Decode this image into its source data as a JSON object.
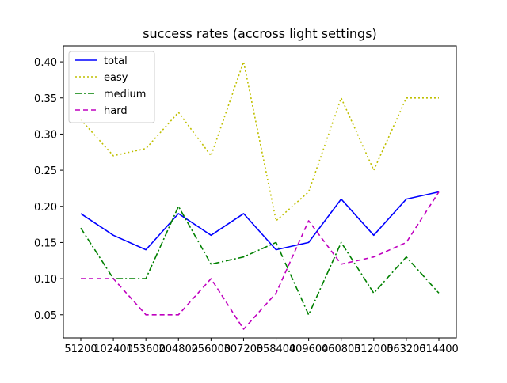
{
  "chart_data": {
    "type": "line",
    "title": "success rates (accross light settings)",
    "xlabel": "",
    "ylabel": "",
    "categories": [
      "51200",
      "102400",
      "153600",
      "204800",
      "256000",
      "307200",
      "358400",
      "409600",
      "460800",
      "512000",
      "563200",
      "614400"
    ],
    "yticks": [
      "0.05",
      "0.10",
      "0.15",
      "0.20",
      "0.25",
      "0.30",
      "0.35",
      "0.40"
    ],
    "ylim": [
      0.018,
      0.422
    ],
    "grid": false,
    "legend_position": "top-left",
    "series": [
      {
        "name": "total",
        "color": "#0000ff",
        "style": "solid",
        "values": [
          0.19,
          0.16,
          0.14,
          0.19,
          0.16,
          0.19,
          0.14,
          0.15,
          0.21,
          0.16,
          0.21,
          0.22
        ]
      },
      {
        "name": "easy",
        "color": "#bfbf00",
        "style": "dotted",
        "values": [
          0.32,
          0.27,
          0.28,
          0.33,
          0.27,
          0.4,
          0.18,
          0.22,
          0.35,
          0.25,
          0.35,
          0.35
        ]
      },
      {
        "name": "medium",
        "color": "#008000",
        "style": "dashdot",
        "values": [
          0.17,
          0.1,
          0.1,
          0.2,
          0.12,
          0.13,
          0.15,
          0.05,
          0.15,
          0.08,
          0.13,
          0.08
        ]
      },
      {
        "name": "hard",
        "color": "#bf00bf",
        "style": "dashed",
        "values": [
          0.1,
          0.1,
          0.05,
          0.05,
          0.1,
          0.03,
          0.08,
          0.18,
          0.12,
          0.13,
          0.15,
          0.22
        ]
      }
    ]
  }
}
